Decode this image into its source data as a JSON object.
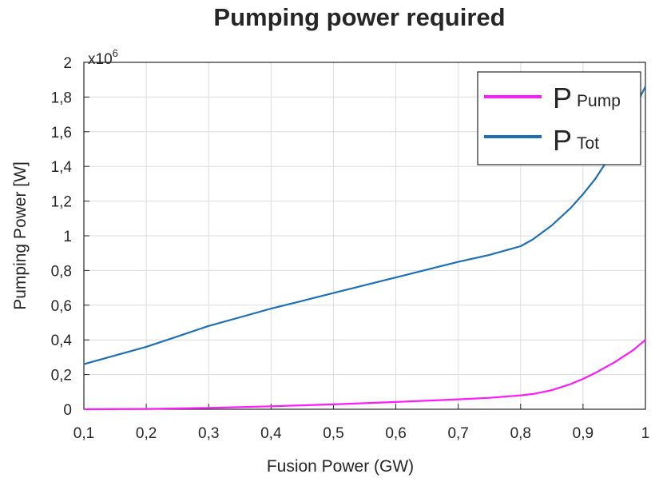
{
  "chart_data": {
    "type": "line",
    "title": "Pumping power required",
    "xlabel": "Fusion Power (GW)",
    "ylabel": "Pumping Power [W]",
    "y_multiplier": "x10",
    "y_multiplier_exp": "6",
    "xlim": [
      0.1,
      1.0
    ],
    "ylim": [
      0,
      2.0
    ],
    "x_ticks": [
      "0,1",
      "0,2",
      "0,3",
      "0,4",
      "0,5",
      "0,6",
      "0,7",
      "0,8",
      "0,9",
      "1"
    ],
    "y_ticks": [
      "0",
      "0,2",
      "0,4",
      "0,6",
      "0,8",
      "1",
      "1,2",
      "1,4",
      "1,6",
      "1,8",
      "2"
    ],
    "grid": true,
    "legend_position": "top-right",
    "series": [
      {
        "name": "P",
        "subscript": "Pump",
        "color": "#ff1aff",
        "x": [
          0.1,
          0.2,
          0.3,
          0.4,
          0.5,
          0.6,
          0.7,
          0.75,
          0.8,
          0.82,
          0.85,
          0.88,
          0.9,
          0.92,
          0.95,
          0.98,
          1.0
        ],
        "y": [
          0.0,
          0.002,
          0.008,
          0.017,
          0.028,
          0.042,
          0.057,
          0.066,
          0.08,
          0.088,
          0.11,
          0.145,
          0.175,
          0.21,
          0.27,
          0.34,
          0.4
        ]
      },
      {
        "name": "P",
        "subscript": "Tot",
        "color": "#1f6fb4",
        "x": [
          0.1,
          0.15,
          0.2,
          0.25,
          0.3,
          0.35,
          0.4,
          0.45,
          0.5,
          0.55,
          0.6,
          0.65,
          0.7,
          0.75,
          0.8,
          0.82,
          0.85,
          0.88,
          0.9,
          0.92,
          0.94,
          0.96,
          0.98,
          1.0
        ],
        "y": [
          0.26,
          0.31,
          0.36,
          0.42,
          0.48,
          0.53,
          0.58,
          0.625,
          0.67,
          0.715,
          0.76,
          0.805,
          0.85,
          0.89,
          0.94,
          0.98,
          1.06,
          1.16,
          1.24,
          1.33,
          1.44,
          1.57,
          1.72,
          1.86
        ]
      }
    ]
  }
}
